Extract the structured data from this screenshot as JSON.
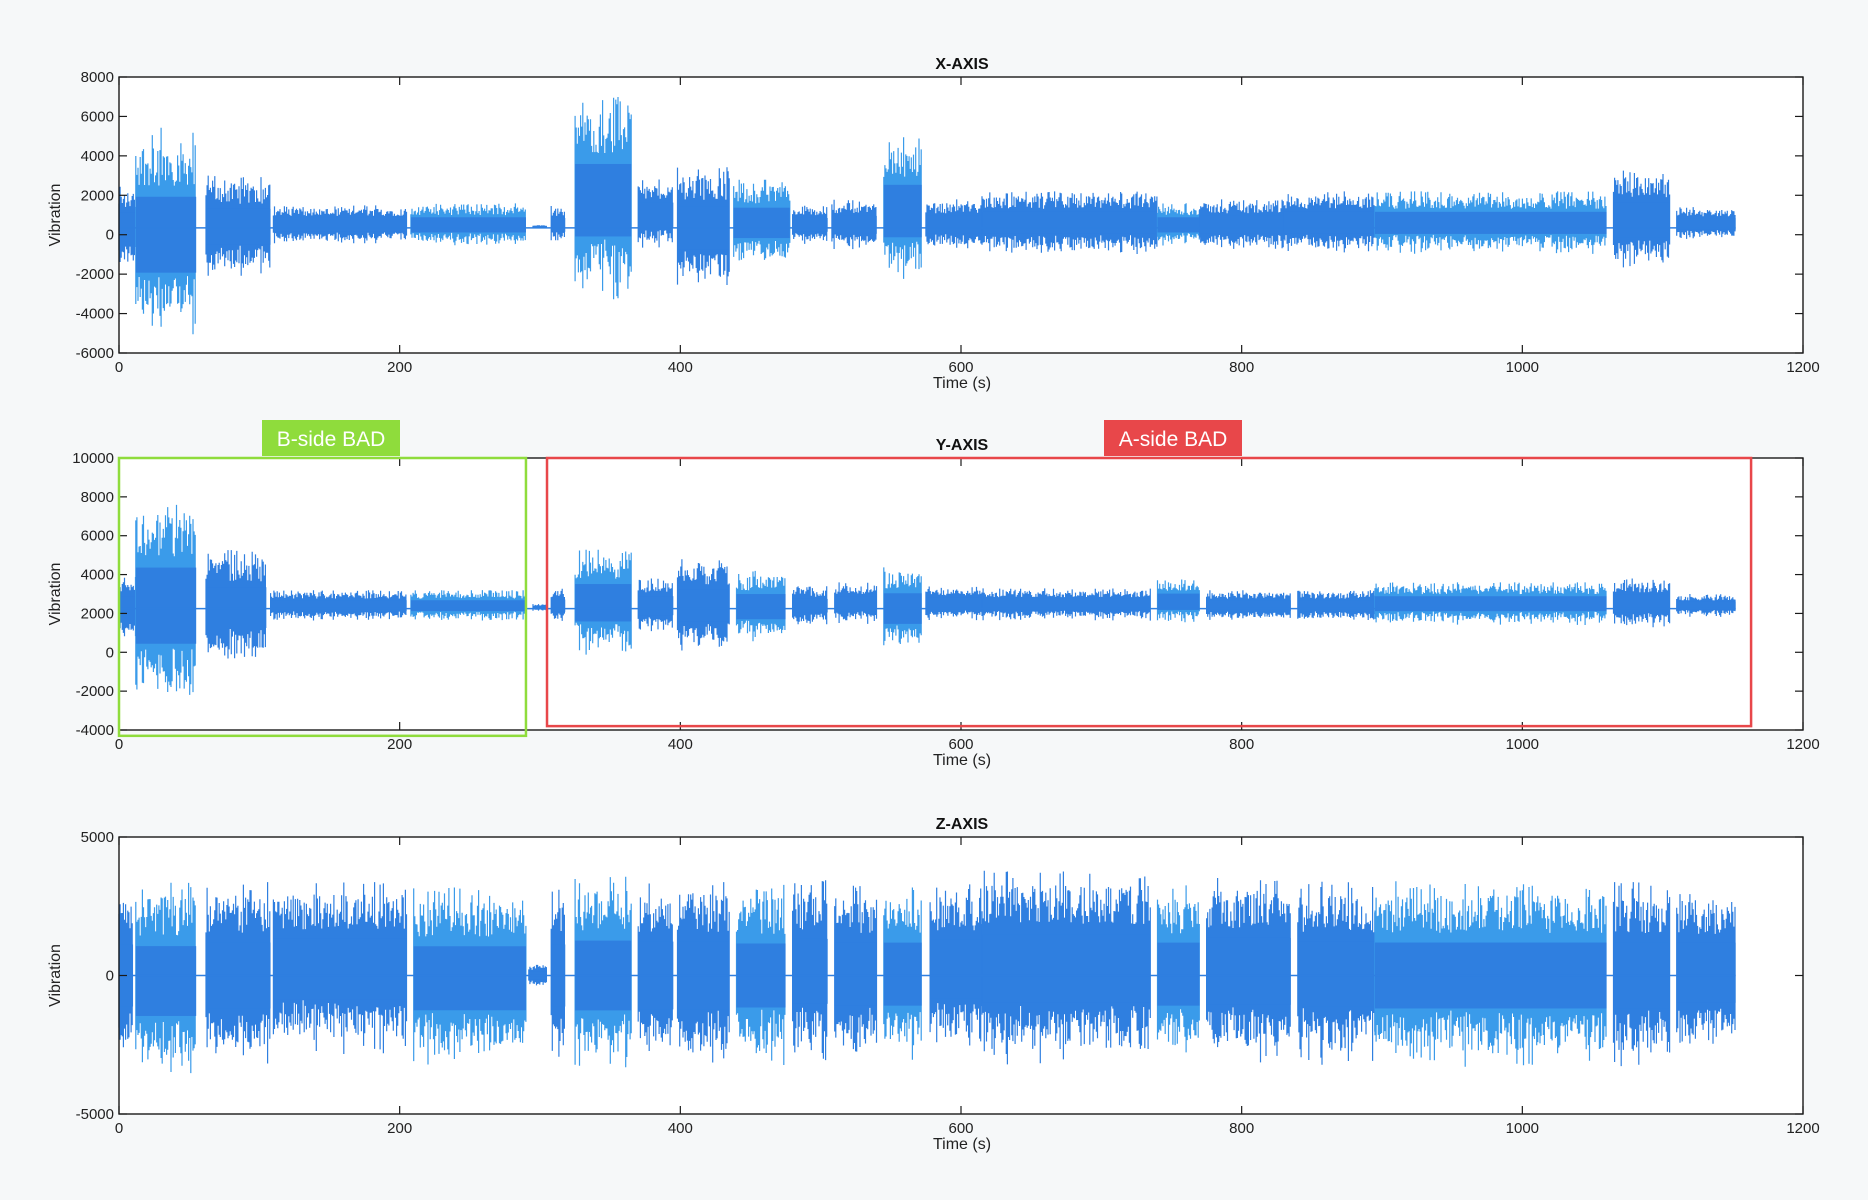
{
  "colors": {
    "signal": "#2f7fe0",
    "signal_light": "#3a9bea",
    "axis": "#1a1a1a",
    "b_side": "#8fdc3c",
    "a_side": "#e8474a",
    "plot_bg": "#ffffff"
  },
  "chart_data": [
    {
      "type": "line",
      "title": "X-AXIS",
      "xlabel": "Time (s)",
      "ylabel": "Vibration",
      "xlim": [
        0,
        1200
      ],
      "ylim": [
        -6000,
        8000
      ],
      "xticks": [
        0,
        200,
        400,
        600,
        800,
        1000,
        1200
      ],
      "xtick_labels": [
        "0",
        "200",
        "400",
        "600",
        "800",
        "1000",
        "1200"
      ],
      "yticks": [
        -6000,
        -4000,
        -2000,
        0,
        2000,
        4000,
        6000,
        8000
      ],
      "ytick_labels": [
        "-6000",
        "-4000",
        "-2000",
        "0",
        "2000",
        "4000",
        "6000",
        "8000"
      ],
      "grid": false,
      "series": [
        {
          "envelope": [
            {
              "start": 0,
              "end": 12,
              "max": 2500,
              "min": -1800
            },
            {
              "start": 12,
              "end": 55,
              "max": 5500,
              "min": -5500
            },
            {
              "start": 62,
              "end": 108,
              "max": 3000,
              "min": -2200
            },
            {
              "start": 110,
              "end": 205,
              "max": 1500,
              "min": -500
            },
            {
              "start": 208,
              "end": 290,
              "max": 1600,
              "min": -600
            },
            {
              "start": 295,
              "end": 305,
              "max": 500,
              "min": 300
            },
            {
              "start": 308,
              "end": 318,
              "max": 1500,
              "min": -500
            },
            {
              "start": 325,
              "end": 365,
              "max": 7000,
              "min": -3500
            },
            {
              "start": 370,
              "end": 395,
              "max": 2800,
              "min": -800
            },
            {
              "start": 398,
              "end": 435,
              "max": 3500,
              "min": -2800
            },
            {
              "start": 438,
              "end": 478,
              "max": 2800,
              "min": -1600
            },
            {
              "start": 480,
              "end": 505,
              "max": 1500,
              "min": -500
            },
            {
              "start": 508,
              "end": 540,
              "max": 1800,
              "min": -800
            },
            {
              "start": 545,
              "end": 572,
              "max": 5000,
              "min": -2600
            },
            {
              "start": 575,
              "end": 615,
              "max": 1800,
              "min": -800
            },
            {
              "start": 615,
              "end": 740,
              "max": 2200,
              "min": -1000
            },
            {
              "start": 740,
              "end": 770,
              "max": 1600,
              "min": -600
            },
            {
              "start": 770,
              "end": 830,
              "max": 1800,
              "min": -800
            },
            {
              "start": 830,
              "end": 895,
              "max": 2200,
              "min": -1000
            },
            {
              "start": 895,
              "end": 1060,
              "max": 2200,
              "min": -1000
            },
            {
              "start": 1065,
              "end": 1105,
              "max": 3300,
              "min": -1800
            },
            {
              "start": 1110,
              "end": 1152,
              "max": 1400,
              "min": -300
            }
          ]
        }
      ]
    },
    {
      "type": "line",
      "title": "Y-AXIS",
      "xlabel": "Time (s)",
      "ylabel": "Vibration",
      "xlim": [
        0,
        1200
      ],
      "ylim": [
        -4000,
        10000
      ],
      "xticks": [
        0,
        200,
        400,
        600,
        800,
        1000,
        1200
      ],
      "xtick_labels": [
        "0",
        "200",
        "400",
        "600",
        "800",
        "1000",
        "1200"
      ],
      "yticks": [
        -4000,
        -2000,
        0,
        2000,
        4000,
        6000,
        8000,
        10000
      ],
      "ytick_labels": [
        "-4000",
        "-2000",
        "0",
        "2000",
        "4000",
        "6000",
        "8000",
        "10000"
      ],
      "grid": false,
      "series": [
        {
          "envelope": [
            {
              "start": 0,
              "end": 12,
              "max": 4000,
              "min": 500
            },
            {
              "start": 12,
              "end": 55,
              "max": 8000,
              "min": -3200
            },
            {
              "start": 62,
              "end": 105,
              "max": 5300,
              "min": -700
            },
            {
              "start": 108,
              "end": 205,
              "max": 3200,
              "min": 1600
            },
            {
              "start": 208,
              "end": 290,
              "max": 3200,
              "min": 1600
            },
            {
              "start": 295,
              "end": 305,
              "max": 2500,
              "min": 2100
            },
            {
              "start": 308,
              "end": 318,
              "max": 3300,
              "min": 1500
            },
            {
              "start": 325,
              "end": 365,
              "max": 5300,
              "min": -200
            },
            {
              "start": 370,
              "end": 395,
              "max": 3800,
              "min": 1000
            },
            {
              "start": 398,
              "end": 435,
              "max": 4800,
              "min": 0
            },
            {
              "start": 440,
              "end": 475,
              "max": 4200,
              "min": 500
            },
            {
              "start": 480,
              "end": 505,
              "max": 3400,
              "min": 1400
            },
            {
              "start": 510,
              "end": 540,
              "max": 3600,
              "min": 1400
            },
            {
              "start": 545,
              "end": 572,
              "max": 4500,
              "min": 0
            },
            {
              "start": 575,
              "end": 615,
              "max": 3400,
              "min": 1600
            },
            {
              "start": 615,
              "end": 735,
              "max": 3300,
              "min": 1600
            },
            {
              "start": 740,
              "end": 770,
              "max": 3800,
              "min": 1400
            },
            {
              "start": 775,
              "end": 835,
              "max": 3200,
              "min": 1600
            },
            {
              "start": 840,
              "end": 895,
              "max": 3200,
              "min": 1600
            },
            {
              "start": 895,
              "end": 1060,
              "max": 3600,
              "min": 1400
            },
            {
              "start": 1065,
              "end": 1105,
              "max": 3800,
              "min": 1200
            },
            {
              "start": 1110,
              "end": 1152,
              "max": 3000,
              "min": 1800
            }
          ]
        }
      ],
      "annotations": [
        {
          "label": "B-side BAD",
          "x_range": [
            0,
            290
          ],
          "y_range": [
            -4300,
            10000
          ],
          "color": "#8fdc3c"
        },
        {
          "label": "A-side BAD",
          "x_range": [
            305,
            1163
          ],
          "y_range": [
            -3800,
            10000
          ],
          "color": "#e8474a"
        }
      ]
    },
    {
      "type": "line",
      "title": "Z-AXIS",
      "xlabel": "Time (s)",
      "ylabel": "Vibration",
      "xlim": [
        0,
        1200
      ],
      "ylim": [
        -5000,
        5000
      ],
      "xticks": [
        0,
        200,
        400,
        600,
        800,
        1000,
        1200
      ],
      "xtick_labels": [
        "0",
        "200",
        "400",
        "600",
        "800",
        "1000",
        "1200"
      ],
      "yticks": [
        -5000,
        0,
        5000
      ],
      "ytick_labels": [
        "-5000",
        "0",
        "5000"
      ],
      "grid": false,
      "series": [
        {
          "envelope": [
            {
              "start": 0,
              "end": 10,
              "max": 3200,
              "min": -3200
            },
            {
              "start": 12,
              "end": 55,
              "max": 3400,
              "min": -3800
            },
            {
              "start": 62,
              "end": 108,
              "max": 3400,
              "min": -3400
            },
            {
              "start": 110,
              "end": 205,
              "max": 3400,
              "min": -2900
            },
            {
              "start": 210,
              "end": 290,
              "max": 3200,
              "min": -3400
            },
            {
              "start": 292,
              "end": 305,
              "max": 400,
              "min": -400
            },
            {
              "start": 308,
              "end": 318,
              "max": 3200,
              "min": -3200
            },
            {
              "start": 325,
              "end": 365,
              "max": 3600,
              "min": -3600
            },
            {
              "start": 370,
              "end": 395,
              "max": 3500,
              "min": -3500
            },
            {
              "start": 398,
              "end": 435,
              "max": 3500,
              "min": -3500
            },
            {
              "start": 440,
              "end": 475,
              "max": 3300,
              "min": -3300
            },
            {
              "start": 480,
              "end": 505,
              "max": 3500,
              "min": -3200
            },
            {
              "start": 510,
              "end": 540,
              "max": 3300,
              "min": -3200
            },
            {
              "start": 545,
              "end": 572,
              "max": 3300,
              "min": -3200
            },
            {
              "start": 578,
              "end": 615,
              "max": 3300,
              "min": -2800
            },
            {
              "start": 615,
              "end": 735,
              "max": 3800,
              "min": -3300
            },
            {
              "start": 740,
              "end": 770,
              "max": 3300,
              "min": -3200
            },
            {
              "start": 775,
              "end": 835,
              "max": 3600,
              "min": -3300
            },
            {
              "start": 840,
              "end": 895,
              "max": 3400,
              "min": -3300
            },
            {
              "start": 895,
              "end": 1060,
              "max": 3400,
              "min": -3400
            },
            {
              "start": 1065,
              "end": 1105,
              "max": 3400,
              "min": -3400
            },
            {
              "start": 1110,
              "end": 1152,
              "max": 3200,
              "min": -3000
            }
          ]
        }
      ]
    }
  ]
}
